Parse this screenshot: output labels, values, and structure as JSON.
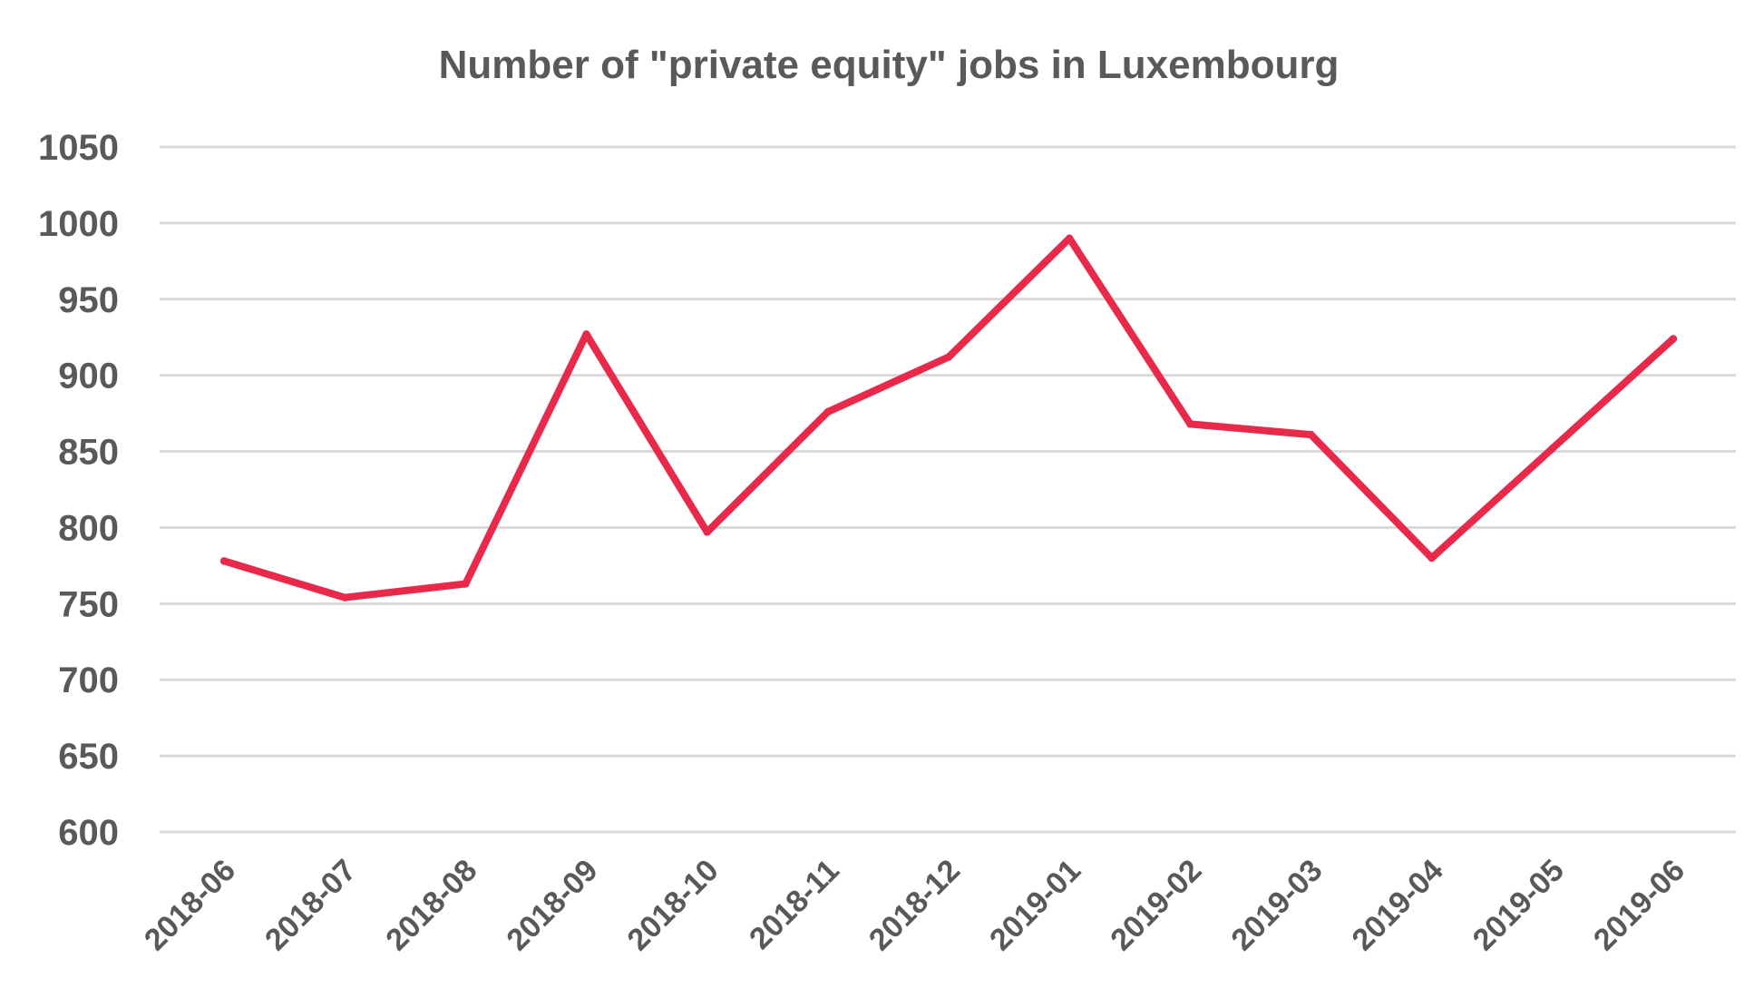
{
  "chart_data": {
    "type": "line",
    "title": "Number of \"private equity\" jobs in Luxembourg",
    "xlabel": "",
    "ylabel": "",
    "categories": [
      "2018-06",
      "2018-07",
      "2018-08",
      "2018-09",
      "2018-10",
      "2018-11",
      "2018-12",
      "2019-01",
      "2019-02",
      "2019-03",
      "2019-04",
      "2019-05",
      "2019-06"
    ],
    "series": [
      {
        "values": [
          778,
          754,
          763,
          927,
          797,
          876,
          912,
          990,
          868,
          861,
          780,
          852,
          924
        ],
        "color": "#E8294A"
      }
    ],
    "ylim": [
      600,
      1050
    ],
    "yticks": [
      600,
      650,
      700,
      750,
      800,
      850,
      900,
      950,
      1000,
      1050
    ],
    "grid": true,
    "legend": "none"
  }
}
